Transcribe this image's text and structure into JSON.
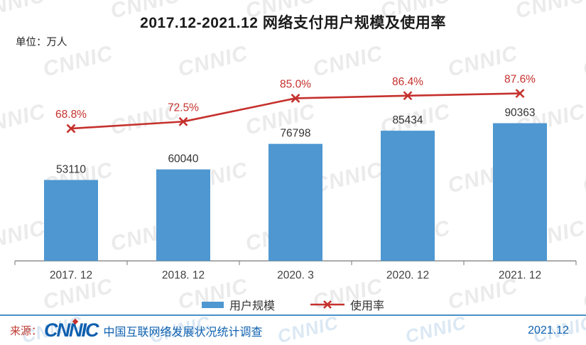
{
  "title": "2017.12-2021.12 网络支付用户规模及使用率",
  "unit_label": "单位：万人",
  "watermark": {
    "text": "CNNIC"
  },
  "chart_data": {
    "type": "combo",
    "categories": [
      "2017.12",
      "2018.12",
      "2020.3",
      "2020.12",
      "2021.12"
    ],
    "tick_labels": [
      "2017. 12",
      "2018. 12",
      "2020. 3",
      "2020. 12",
      "2021. 12"
    ],
    "series": [
      {
        "name": "用户规模",
        "type": "bar",
        "values": [
          53110,
          60040,
          76798,
          85434,
          90363
        ],
        "value_labels": [
          "53110",
          "60040",
          "76798",
          "85434",
          "90363"
        ],
        "color": "#4E97D1"
      },
      {
        "name": "使用率",
        "type": "line",
        "marker": "x",
        "values": [
          68.8,
          72.5,
          85.0,
          86.4,
          87.6
        ],
        "value_labels": [
          "68.8%",
          "72.5%",
          "85.0%",
          "86.4%",
          "87.6%"
        ],
        "color": "#C5312D"
      }
    ],
    "title": "2017.12-2021.12 网络支付用户规模及使用率",
    "xlabel": "",
    "ylabel": "万人",
    "axes_hidden": true,
    "grid": false,
    "legend_position": "bottom"
  },
  "legend": {
    "bar_label": "用户规模",
    "line_label": "使用率"
  },
  "footer": {
    "source_prefix": "来源：",
    "logo_text": "CNNIC",
    "source_text": "中国互联网络发展状况统计调查",
    "date": "2021.12"
  },
  "colors": {
    "bar": "#4E97D1",
    "line": "#C5312D",
    "axis": "#8C8C8C",
    "label_text": "#333333",
    "separator": "#4B90C8",
    "footer_blue": "#1062B0",
    "footer_red": "#BE3A30",
    "logo_blue": "#0E5FAE",
    "watermark_gray": "#EBEBEB"
  }
}
